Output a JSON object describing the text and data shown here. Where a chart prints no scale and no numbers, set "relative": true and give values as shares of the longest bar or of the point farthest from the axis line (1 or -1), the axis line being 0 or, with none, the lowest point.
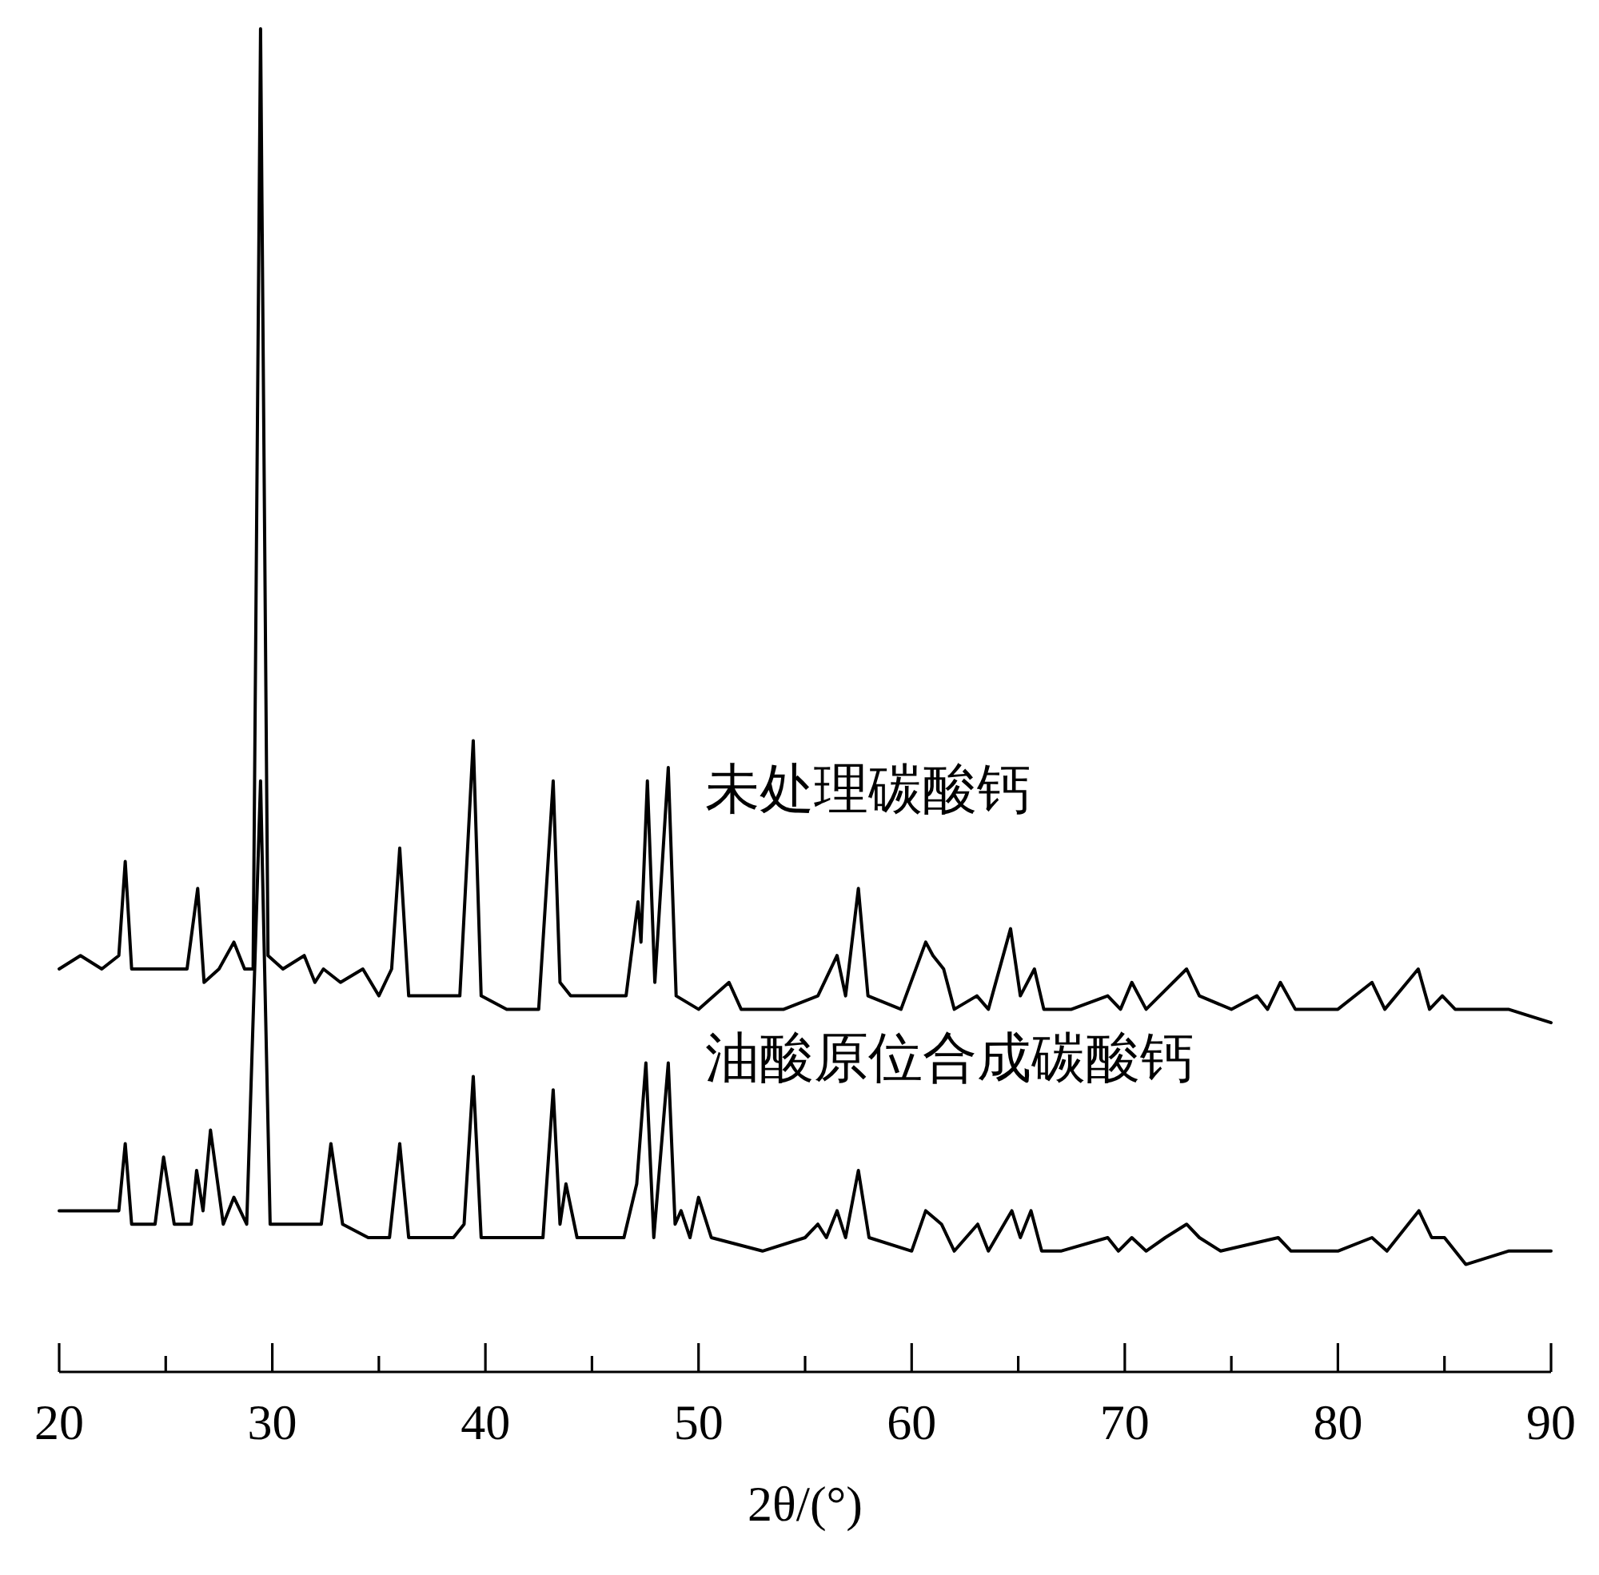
{
  "chart_data": {
    "type": "line",
    "relative": true,
    "xlabel": "2θ/(°)",
    "xlim": [
      20,
      90
    ],
    "xticks": [
      20,
      {
        "value": 25,
        "label": null
      },
      30,
      {
        "value": 35,
        "label": null
      },
      40,
      {
        "value": 45,
        "label": null
      },
      50,
      {
        "value": 55,
        "label": null
      },
      60,
      {
        "value": 65,
        "label": null
      },
      70,
      {
        "value": 75,
        "label": null
      },
      80,
      {
        "value": 85,
        "label": null
      },
      90
    ],
    "series": [
      {
        "name": "未处理碳酸钙",
        "color": "#000000",
        "x": [
          20,
          21,
          22,
          22.8,
          23.1,
          23.4,
          25,
          26.0,
          26.5,
          26.8,
          27.5,
          28.2,
          28.7,
          29.1,
          29.45,
          29.8,
          30.5,
          31.5,
          32.0,
          32.4,
          33.2,
          34.25,
          35.0,
          35.6,
          35.98,
          36.4,
          37.5,
          38.8,
          39.43,
          39.8,
          41,
          42.5,
          43.18,
          43.5,
          44,
          45.5,
          46.6,
          47.16,
          47.3,
          47.6,
          47.95,
          48.58,
          48.95,
          50,
          51.43,
          52,
          54,
          55.6,
          56.5,
          56.9,
          57.5,
          57.95,
          59.5,
          60.66,
          61.0,
          61.5,
          62.0,
          63.06,
          63.6,
          64.64,
          65.1,
          65.76,
          66.2,
          67.5,
          69.2,
          69.8,
          70.33,
          71.0,
          72.9,
          73.5,
          75,
          76.2,
          76.7,
          77.3,
          78,
          80,
          81.6,
          82.2,
          83.77,
          84.3,
          84.9,
          85.5,
          88,
          90
        ],
        "values": [
          0.3,
          0.31,
          0.3,
          0.31,
          0.38,
          0.3,
          0.3,
          0.3,
          0.36,
          0.29,
          0.3,
          0.32,
          0.3,
          0.3,
          1.0,
          0.31,
          0.3,
          0.31,
          0.29,
          0.3,
          0.29,
          0.3,
          0.28,
          0.3,
          0.39,
          0.28,
          0.28,
          0.28,
          0.47,
          0.28,
          0.27,
          0.27,
          0.44,
          0.29,
          0.28,
          0.28,
          0.28,
          0.35,
          0.32,
          0.44,
          0.29,
          0.45,
          0.28,
          0.27,
          0.29,
          0.27,
          0.27,
          0.28,
          0.31,
          0.28,
          0.36,
          0.28,
          0.27,
          0.32,
          0.31,
          0.3,
          0.27,
          0.28,
          0.27,
          0.33,
          0.28,
          0.3,
          0.27,
          0.27,
          0.28,
          0.27,
          0.29,
          0.27,
          0.3,
          0.28,
          0.27,
          0.28,
          0.27,
          0.29,
          0.27,
          0.27,
          0.29,
          0.27,
          0.3,
          0.27,
          0.28,
          0.27,
          0.27,
          0.26
        ]
      },
      {
        "name": "油酸原位合成碳酸钙",
        "color": "#000000",
        "x": [
          20,
          21,
          22,
          22.8,
          23.1,
          23.4,
          24.5,
          24.9,
          25.4,
          26.2,
          26.45,
          26.75,
          27.1,
          27.7,
          28.2,
          28.8,
          29.45,
          29.9,
          31,
          32.3,
          32.75,
          33.3,
          34.5,
          35.5,
          35.98,
          36.4,
          38.5,
          39.0,
          39.43,
          39.8,
          41.5,
          42.7,
          43.18,
          43.5,
          43.78,
          44.3,
          46.5,
          47.1,
          47.53,
          47.9,
          48.58,
          48.9,
          49.18,
          49.6,
          50.0,
          50.6,
          53,
          55.0,
          55.6,
          56.0,
          56.5,
          56.9,
          57.5,
          58,
          60,
          60.66,
          61.4,
          62.0,
          63.1,
          63.6,
          64.7,
          65.1,
          65.6,
          66.1,
          67,
          69.2,
          69.7,
          70.33,
          71.0,
          71.9,
          72.9,
          73.5,
          74.5,
          77.2,
          77.8,
          80,
          81.6,
          82.3,
          83.8,
          84.4,
          85.0,
          86,
          88,
          90
        ],
        "values": [
          0.12,
          0.12,
          0.12,
          0.12,
          0.17,
          0.11,
          0.11,
          0.16,
          0.11,
          0.11,
          0.15,
          0.12,
          0.18,
          0.11,
          0.13,
          0.11,
          0.44,
          0.11,
          0.11,
          0.11,
          0.17,
          0.11,
          0.1,
          0.1,
          0.17,
          0.1,
          0.1,
          0.11,
          0.22,
          0.1,
          0.1,
          0.1,
          0.21,
          0.11,
          0.14,
          0.1,
          0.1,
          0.14,
          0.23,
          0.1,
          0.23,
          0.11,
          0.12,
          0.1,
          0.13,
          0.1,
          0.09,
          0.1,
          0.11,
          0.1,
          0.12,
          0.1,
          0.15,
          0.1,
          0.09,
          0.12,
          0.11,
          0.09,
          0.11,
          0.09,
          0.12,
          0.1,
          0.12,
          0.09,
          0.09,
          0.1,
          0.09,
          0.1,
          0.09,
          0.1,
          0.11,
          0.1,
          0.09,
          0.1,
          0.09,
          0.09,
          0.1,
          0.09,
          0.12,
          0.1,
          0.1,
          0.08,
          0.09,
          0.09
        ]
      }
    ]
  }
}
